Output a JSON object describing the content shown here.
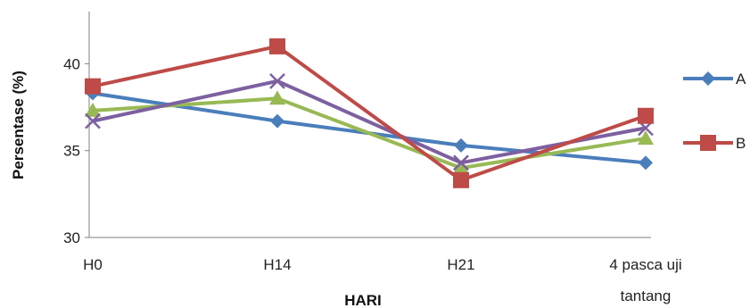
{
  "chart_data": {
    "type": "line",
    "categories": [
      "H0",
      "H14",
      "H21",
      "4 pasca uji tantang"
    ],
    "category_label_lines": [
      [
        "H0"
      ],
      [
        "H14"
      ],
      [
        "H21"
      ],
      [
        "4 pasca uji",
        "tantang"
      ]
    ],
    "xlabel": "HARI",
    "ylabel": "Persentase (%)",
    "ylim": [
      30,
      43
    ],
    "yticks": [
      30,
      35,
      40
    ],
    "grid": false,
    "legend_position": "right",
    "series": [
      {
        "name": "A",
        "values": [
          38.3,
          36.7,
          35.3,
          34.3
        ],
        "color": "#4a7ebb",
        "marker": "diamond",
        "in_legend": true
      },
      {
        "name": "B",
        "values": [
          38.7,
          41.0,
          33.3,
          37.0
        ],
        "color": "#be4b48",
        "marker": "square",
        "in_legend": true
      },
      {
        "values": [
          37.3,
          38.0,
          34.0,
          35.7
        ],
        "color": "#98b954",
        "marker": "triangle",
        "in_legend": false
      },
      {
        "values": [
          36.7,
          39.0,
          34.3,
          36.3
        ],
        "color": "#7d60a0",
        "marker": "x",
        "in_legend": false
      }
    ]
  }
}
